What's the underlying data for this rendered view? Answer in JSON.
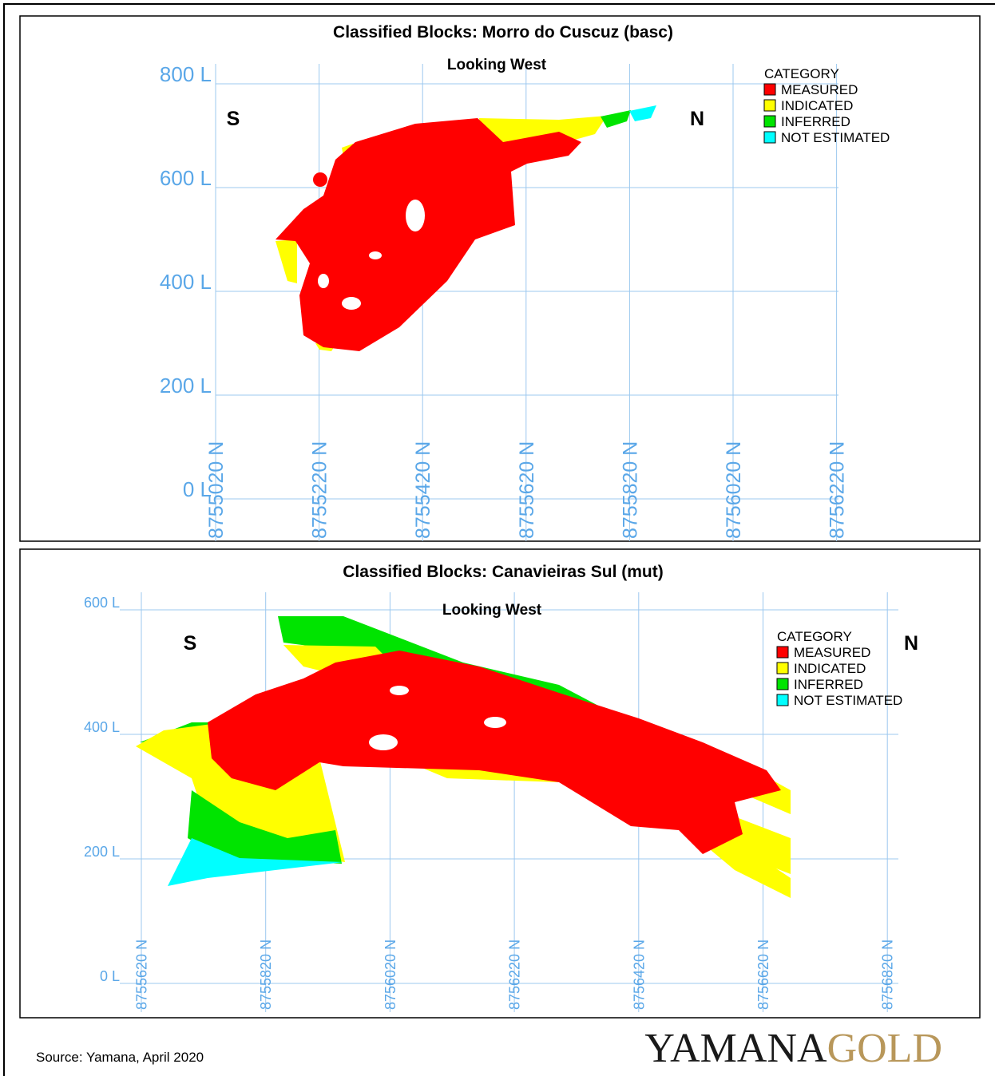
{
  "panels": [
    {
      "title": "Classified  Blocks: Morro do Cuscuz (basc)",
      "subtitle": "Looking West",
      "south": "S",
      "north": "N",
      "elevations": [
        "800 L",
        "600 L",
        "400 L",
        "200 L",
        "0 L"
      ],
      "northings": [
        "8755020 N",
        "8755220 N",
        "8755420 N",
        "8755620 N",
        "8755820 N",
        "8756020 N",
        "8756220 N"
      ],
      "legend": {
        "title": "CATEGORY",
        "items": [
          {
            "label": "MEASURED",
            "color": "#ff0000"
          },
          {
            "label": "INDICATED",
            "color": "#ffff00"
          },
          {
            "label": "INFERRED",
            "color": "#00e400"
          },
          {
            "label": "NOT ESTIMATED",
            "color": "#00ffff"
          }
        ]
      }
    },
    {
      "title": "Classified  Blocks: Canavieiras Sul (mut)",
      "subtitle": "Looking West",
      "south": "S",
      "north": "N",
      "elevations": [
        "600 L",
        "400 L",
        "200 L",
        "0 L"
      ],
      "northings": [
        "8755620 N",
        "8755820 N",
        "8756020 N",
        "8756220 N",
        "8756420 N",
        "8756620 N",
        "8756820 N"
      ],
      "legend": {
        "title": "CATEGORY",
        "items": [
          {
            "label": "MEASURED",
            "color": "#ff0000"
          },
          {
            "label": "INDICATED",
            "color": "#ffff00"
          },
          {
            "label": "INFERRED",
            "color": "#00e400"
          },
          {
            "label": "NOT ESTIMATED",
            "color": "#00ffff"
          }
        ]
      }
    }
  ],
  "source": "Source: Yamana, April 2020",
  "logo": {
    "part1": "YAMANA",
    "part2": "GOLD"
  }
}
